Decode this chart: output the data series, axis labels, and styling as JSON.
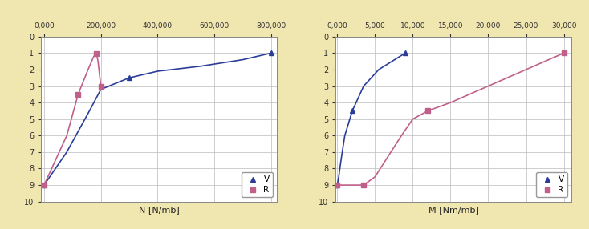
{
  "background_color": "#f0e6b0",
  "plot_bg_color": "#ffffff",
  "grid_color": "#bbbbbb",
  "left": {
    "xlabel": "N [N/mb]",
    "xticks": [
      0,
      200000,
      400000,
      600000,
      800000
    ],
    "xlim": [
      -10000,
      820000
    ],
    "ylim": [
      0,
      10
    ],
    "yticks": [
      0,
      1,
      2,
      3,
      4,
      5,
      6,
      7,
      8,
      9,
      10
    ],
    "V_x": [
      0,
      80000,
      160000,
      200000,
      300000,
      400000,
      550000,
      700000,
      800000
    ],
    "V_y": [
      9.0,
      7.0,
      4.5,
      3.2,
      2.5,
      2.1,
      1.8,
      1.4,
      1.0
    ],
    "R_x": [
      0,
      80000,
      120000,
      155000,
      175000,
      185000,
      190000,
      200000
    ],
    "R_y": [
      9.0,
      6.0,
      3.5,
      2.0,
      1.2,
      1.05,
      1.5,
      3.0
    ]
  },
  "right": {
    "xlabel": "M [Nm/mb]",
    "xticks": [
      0,
      5000,
      10000,
      15000,
      20000,
      25000,
      30000
    ],
    "xlim": [
      -200,
      31000
    ],
    "ylim": [
      0,
      10
    ],
    "yticks": [
      0,
      1,
      2,
      3,
      4,
      5,
      6,
      7,
      8,
      9,
      10
    ],
    "V_x": [
      0,
      200,
      500,
      1000,
      2000,
      3500,
      5500,
      9000
    ],
    "V_y": [
      9.0,
      8.5,
      7.5,
      6.0,
      4.5,
      3.0,
      2.0,
      1.0
    ],
    "R_x": [
      0,
      500,
      1000,
      2000,
      3500,
      5000,
      8500,
      10000,
      12000,
      15000,
      20000,
      25000,
      30000
    ],
    "R_y": [
      9.0,
      9.0,
      9.0,
      9.0,
      9.0,
      8.5,
      6.0,
      5.0,
      4.5,
      4.0,
      3.0,
      2.0,
      1.0
    ]
  },
  "V_color": "#2b3d99",
  "R_color": "#c0608a",
  "legend_V": "V",
  "legend_R": "R"
}
